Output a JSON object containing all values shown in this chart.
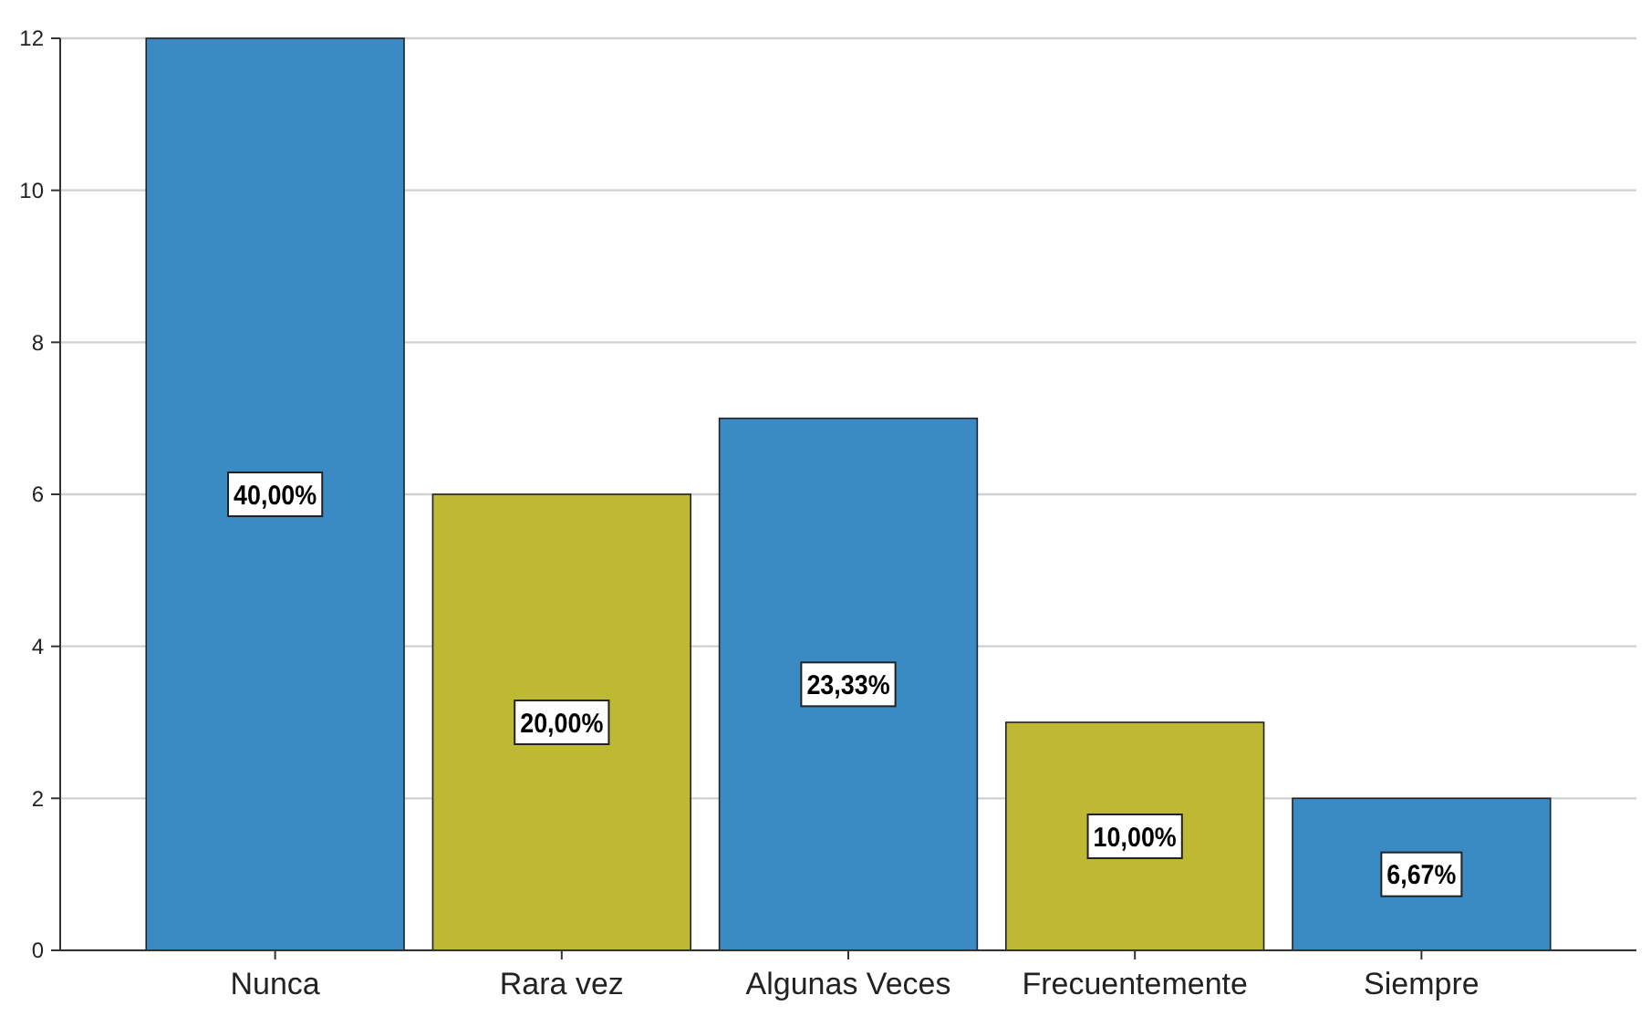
{
  "chart_data": {
    "type": "bar",
    "categories": [
      "Nunca",
      "Rara vez",
      "Algunas Veces",
      "Frecuentemente",
      "Siempre"
    ],
    "values": [
      12,
      6,
      7,
      3,
      2
    ],
    "colors": [
      "#3a8ac4",
      "#bfb832",
      "#3a8ac4",
      "#bfb832",
      "#3a8ac4"
    ],
    "annotations": [
      "40,00%",
      "20,00%",
      "23,33%",
      "10,00%",
      "6,67%"
    ],
    "ylim": [
      0,
      12
    ],
    "yticks": [
      0,
      2,
      4,
      6,
      8,
      10,
      12
    ],
    "grid": "y"
  }
}
